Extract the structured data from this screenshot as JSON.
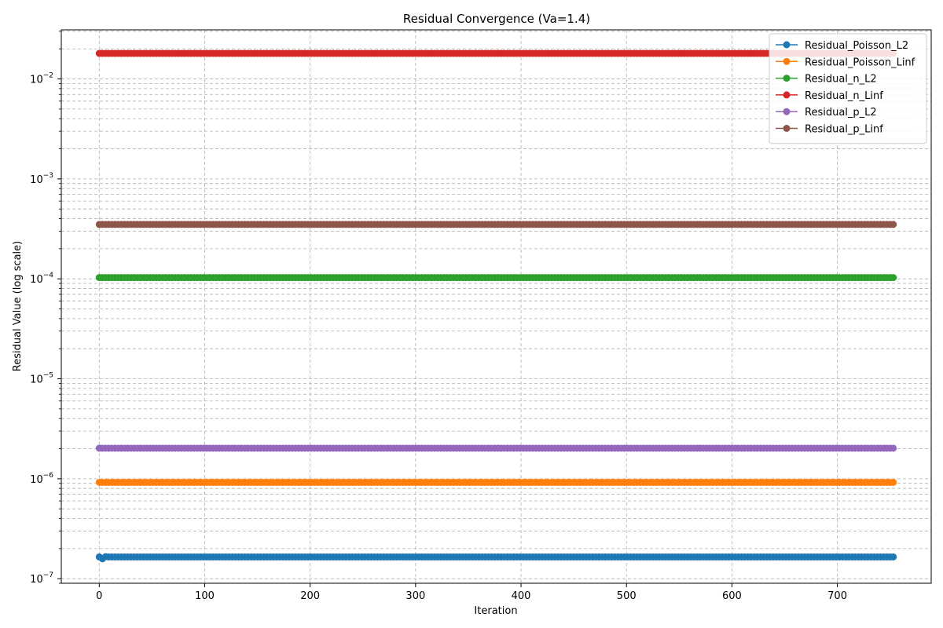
{
  "chart_data": {
    "type": "line",
    "title": "Residual Convergence (Va=1.4)",
    "xlabel": "Iteration",
    "ylabel": "Residual Value (log scale)",
    "xlim": [
      -36,
      789
    ],
    "ylim": [
      9e-08,
      0.031
    ],
    "yscale": "log",
    "grid": true,
    "legend_position": "top-right",
    "x_ticks": [
      0,
      100,
      200,
      300,
      400,
      500,
      600,
      700
    ],
    "y_ticks": [
      {
        "value": 1e-07,
        "base": "10",
        "exp": "−7"
      },
      {
        "value": 1e-06,
        "base": "10",
        "exp": "−6"
      },
      {
        "value": 1e-05,
        "base": "10",
        "exp": "−5"
      },
      {
        "value": 0.0001,
        "base": "10",
        "exp": "−4"
      },
      {
        "value": 0.001,
        "base": "10",
        "exp": "−3"
      },
      {
        "value": 0.01,
        "base": "10",
        "exp": "−2"
      }
    ],
    "iterations": {
      "start": 0,
      "end": 753,
      "step": 3
    },
    "series": [
      {
        "name": "Residual_Poisson_L2",
        "color": "#1f77b4",
        "value": 1.65e-07,
        "initial_points": [
          [
            0,
            1.65e-07
          ],
          [
            3,
            1.58e-07
          ],
          [
            6,
            1.66e-07
          ]
        ]
      },
      {
        "name": "Residual_Poisson_Linf",
        "color": "#ff7f0e",
        "value": 9.2e-07
      },
      {
        "name": "Residual_n_L2",
        "color": "#2ca02c",
        "value": 0.000103
      },
      {
        "name": "Residual_n_Linf",
        "color": "#d62728",
        "value": 0.018
      },
      {
        "name": "Residual_p_L2",
        "color": "#9467bd",
        "value": 2.02e-06
      },
      {
        "name": "Residual_p_Linf",
        "color": "#8c564b",
        "value": 0.00035
      }
    ]
  }
}
